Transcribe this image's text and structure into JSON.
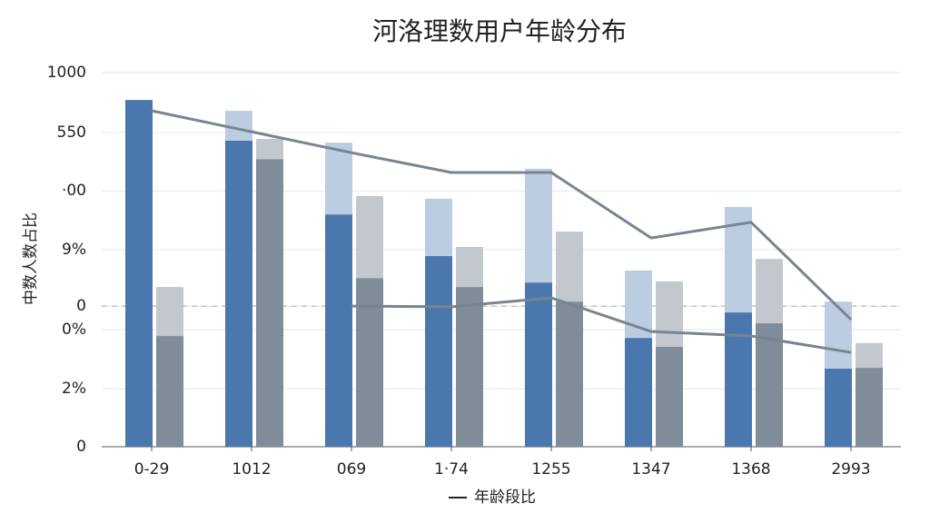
{
  "chart_data": {
    "type": "bar",
    "title": "河洛理数用户年龄分布",
    "y_label": "中数人数占比",
    "x_label": "年龄段比",
    "categories": [
      "0-29",
      "1012",
      "069",
      "1·74",
      "1255",
      "1347",
      "1368",
      "2993"
    ],
    "ylim": [
      0,
      1000
    ],
    "yticks": [
      0,
      {
        "value": 155,
        "label": "2%"
      },
      {
        "value": 313,
        "label": "0%"
      },
      {
        "value": 376,
        "label": "0"
      },
      {
        "value": 527,
        "label": "9%"
      },
      {
        "value": 684,
        "label": "·00"
      },
      {
        "value": 840,
        "label": "550"
      },
      1000
    ],
    "grid": true,
    "reference_line": 376,
    "bar_groups": [
      {
        "segments": [
          {
            "color": "#4a78ae",
            "values": [
              927,
              818,
              621,
              510,
              439,
              291,
              359,
              209
            ]
          },
          {
            "color": "#bccde2",
            "values": [
              0,
              80,
              192,
              153,
              304,
              180,
              282,
              179
            ]
          }
        ]
      },
      {
        "segments": [
          {
            "color": "#7f8c99",
            "values": [
              296,
              769,
              451,
              427,
              388,
              267,
              330,
              211
            ]
          },
          {
            "color": "#c3c8cf",
            "values": [
              131,
              54,
              219,
              107,
              187,
              175,
              172,
              66
            ]
          }
        ]
      }
    ],
    "lines": [
      {
        "color": "#7a8490",
        "values": [
          898,
          842,
          786,
          733,
          733,
          558,
          600,
          340
        ]
      },
      {
        "color": "#7a8490",
        "values": [
          null,
          null,
          376,
          374,
          398,
          308,
          296,
          252
        ]
      }
    ]
  }
}
